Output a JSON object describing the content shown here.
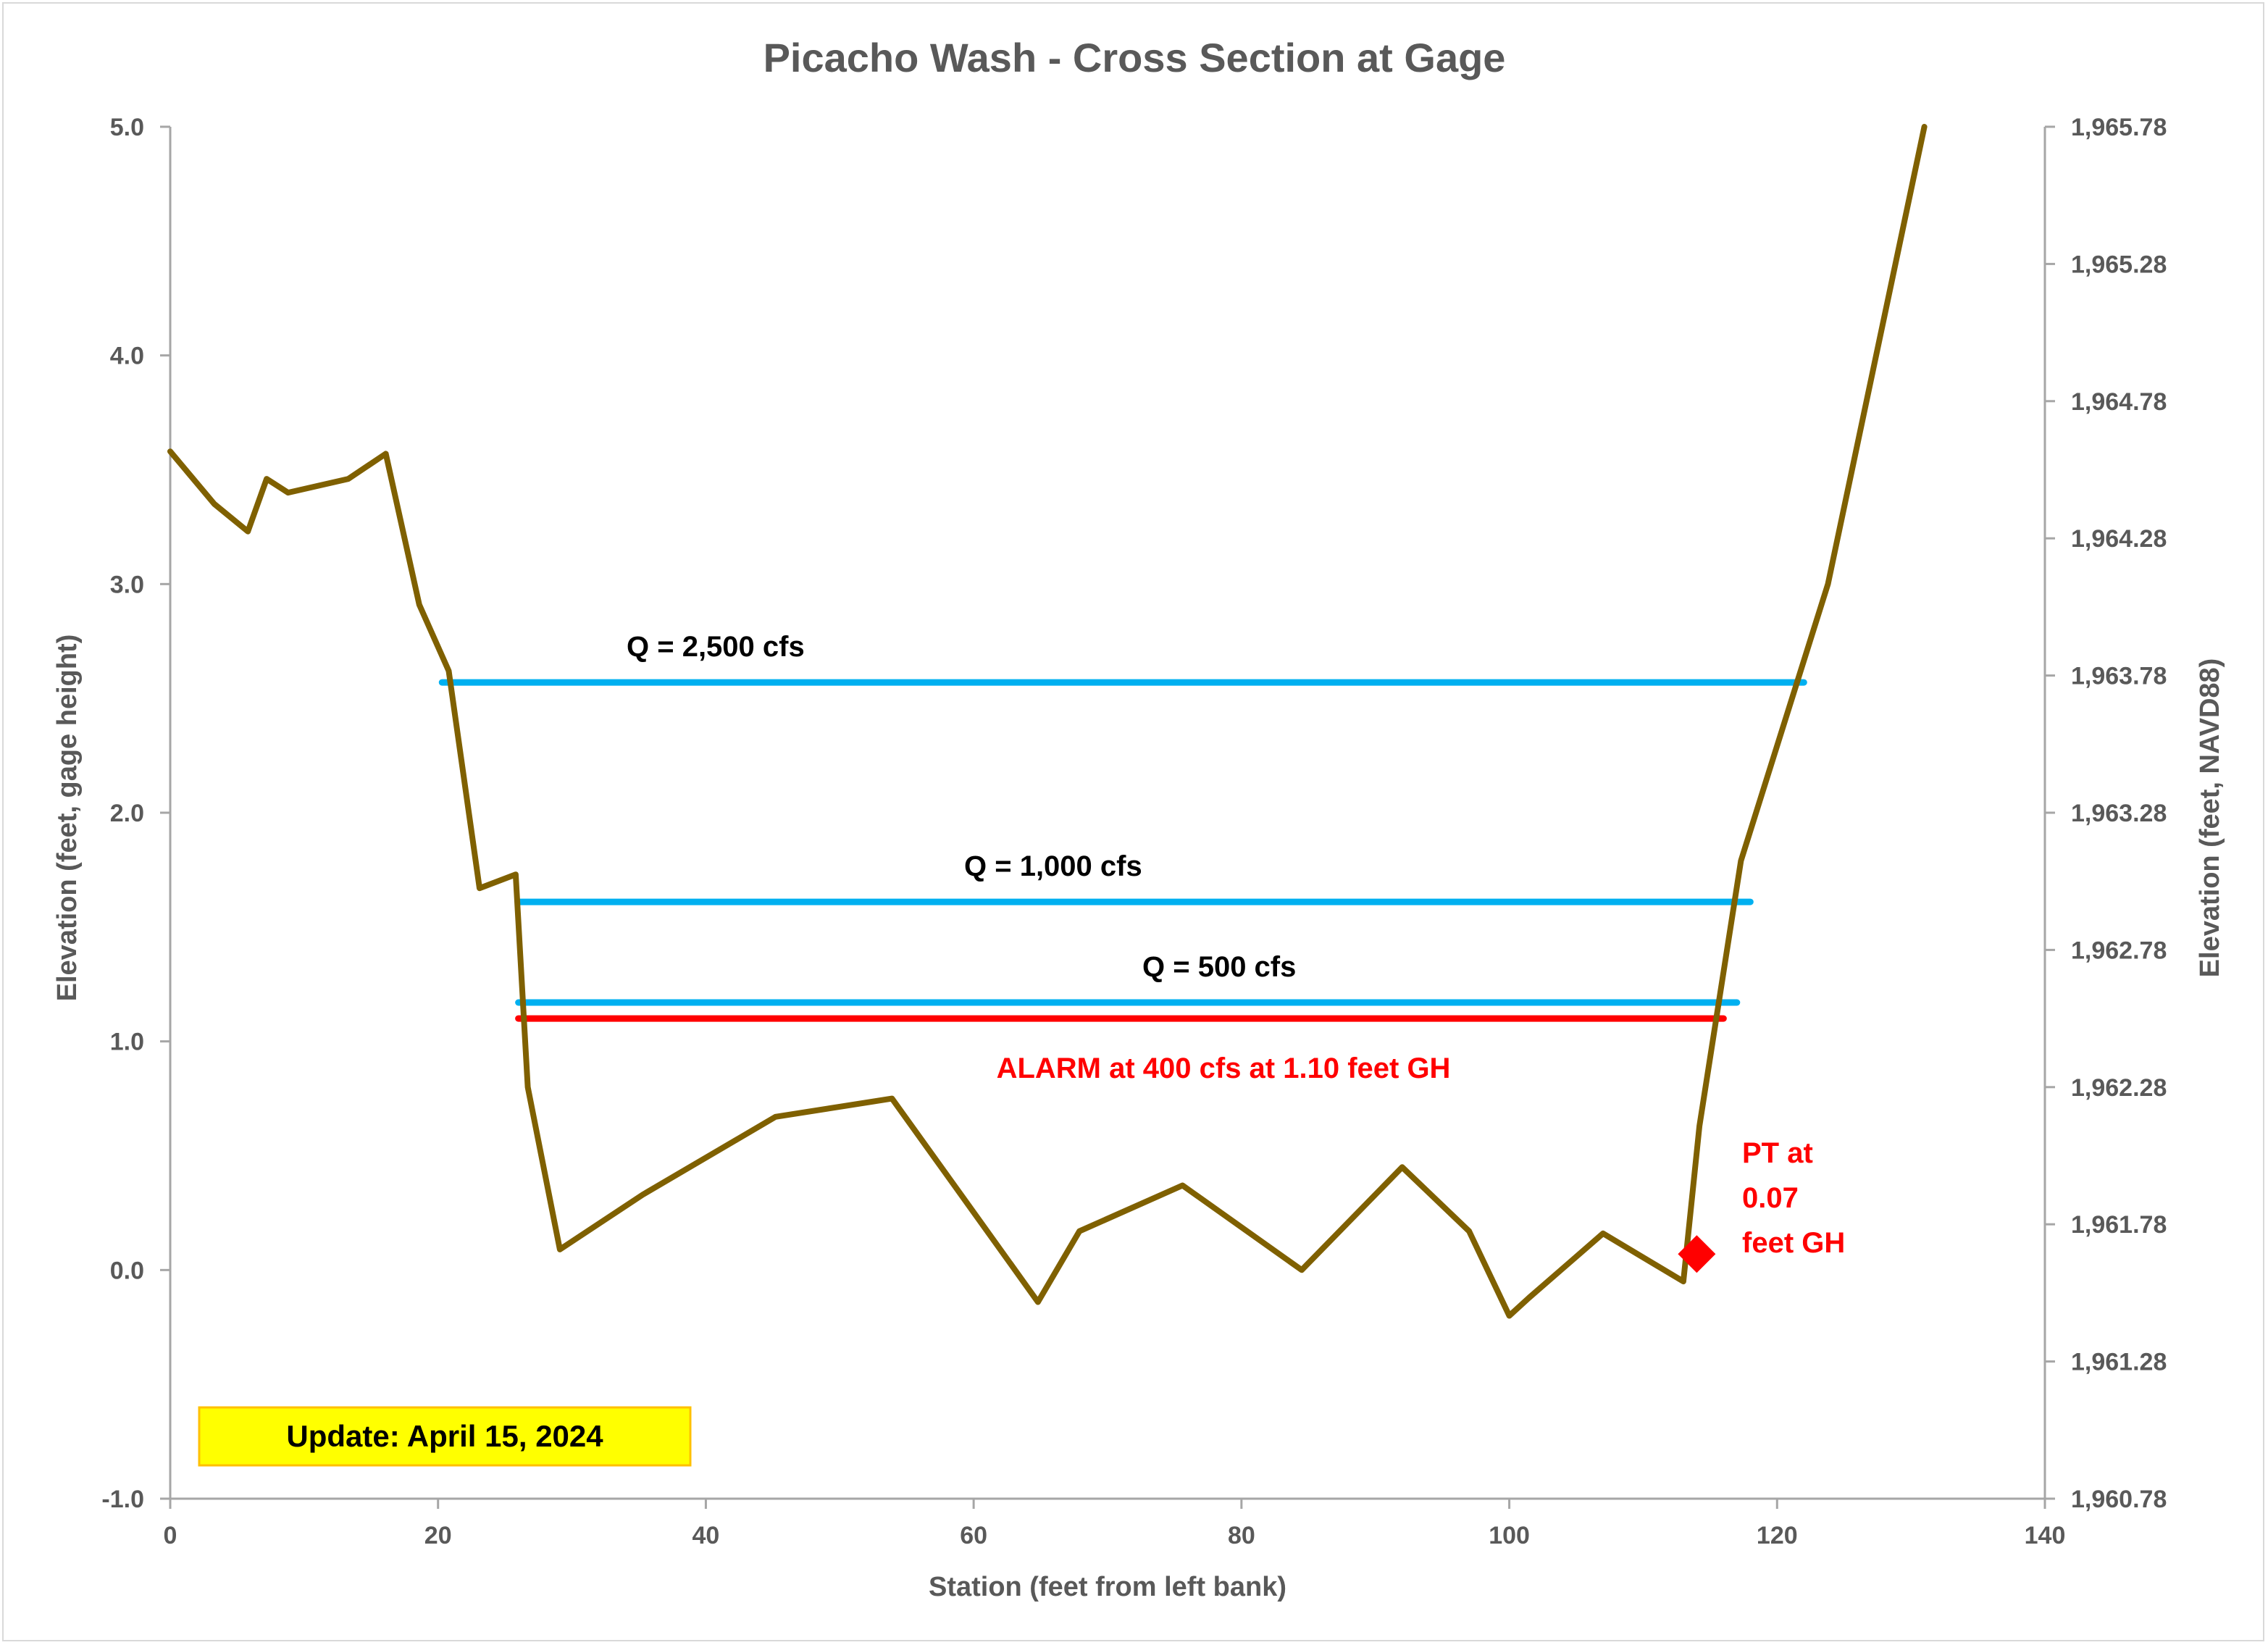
{
  "chart_data": {
    "type": "line",
    "title": "Picacho Wash - Cross Section at Gage",
    "xlabel": "Station (feet from left bank)",
    "ylabel": "Elevation (feet, gage height)",
    "y2label": "Elevation (feet, NAVD88)",
    "xlim": [
      0,
      140
    ],
    "ylim": [
      -1.0,
      5.0
    ],
    "y2lim": [
      1960.78,
      1965.78
    ],
    "x_ticks": [
      "0",
      "20",
      "40",
      "60",
      "80",
      "100",
      "120",
      "140"
    ],
    "y_ticks": [
      "-1.0",
      "0.0",
      "1.0",
      "2.0",
      "3.0",
      "4.0",
      "5.0"
    ],
    "y2_ticks": [
      "1,960.78",
      "1,961.28",
      "1,961.78",
      "1,962.28",
      "1,962.78",
      "1,963.28",
      "1,963.78",
      "1,964.28",
      "1,964.78",
      "1,965.28",
      "1,965.78"
    ],
    "grid": false,
    "colors": {
      "cross_section": "#7f6000",
      "flow_lines": "#00b0f0",
      "alarm": "#ff0000",
      "pt_marker": "#ff0000",
      "update_box": "#ffff00",
      "axis": "#a6a6a6",
      "text": "#595959"
    },
    "cross_section": {
      "x": [
        0,
        3.3,
        5.8,
        7.2,
        8.8,
        13.3,
        16.1,
        18.6,
        20.8,
        23.1,
        25.8,
        26.7,
        29.1,
        35.3,
        45.2,
        53.9,
        58.8,
        64.8,
        67.9,
        75.6,
        84.5,
        92.0,
        97.0,
        100.0,
        101.5,
        107.0,
        113.0,
        114.2,
        117.3,
        123.8,
        131.0
      ],
      "y": [
        3.58,
        3.35,
        3.23,
        3.46,
        3.4,
        3.46,
        3.57,
        2.91,
        2.62,
        1.67,
        1.73,
        0.8,
        0.09,
        0.33,
        0.67,
        0.75,
        0.35,
        -0.14,
        0.17,
        0.37,
        0.0,
        0.45,
        0.17,
        -0.2,
        -0.12,
        0.16,
        -0.05,
        0.63,
        1.79,
        3.0,
        5.0
      ]
    },
    "flow_lines": [
      {
        "label": "Q = 2,500 cfs",
        "y": 2.57,
        "x_start": 20.3,
        "x_end": 122.0
      },
      {
        "label": "Q = 1,000 cfs",
        "y": 1.61,
        "x_start": 26.0,
        "x_end": 118.0
      },
      {
        "label": "Q = 500 cfs",
        "y": 1.17,
        "x_start": 26.0,
        "x_end": 117.0
      }
    ],
    "alarm_line": {
      "label": "ALARM at 400 cfs at 1.10 feet GH",
      "y": 1.1,
      "x_start": 26.0,
      "x_end": 116.0
    },
    "pt_marker": {
      "x": 114.0,
      "y": 0.07,
      "label_lines": [
        "PT at",
        "0.07",
        "feet GH"
      ]
    },
    "update_note": "Update: April 15, 2024"
  }
}
